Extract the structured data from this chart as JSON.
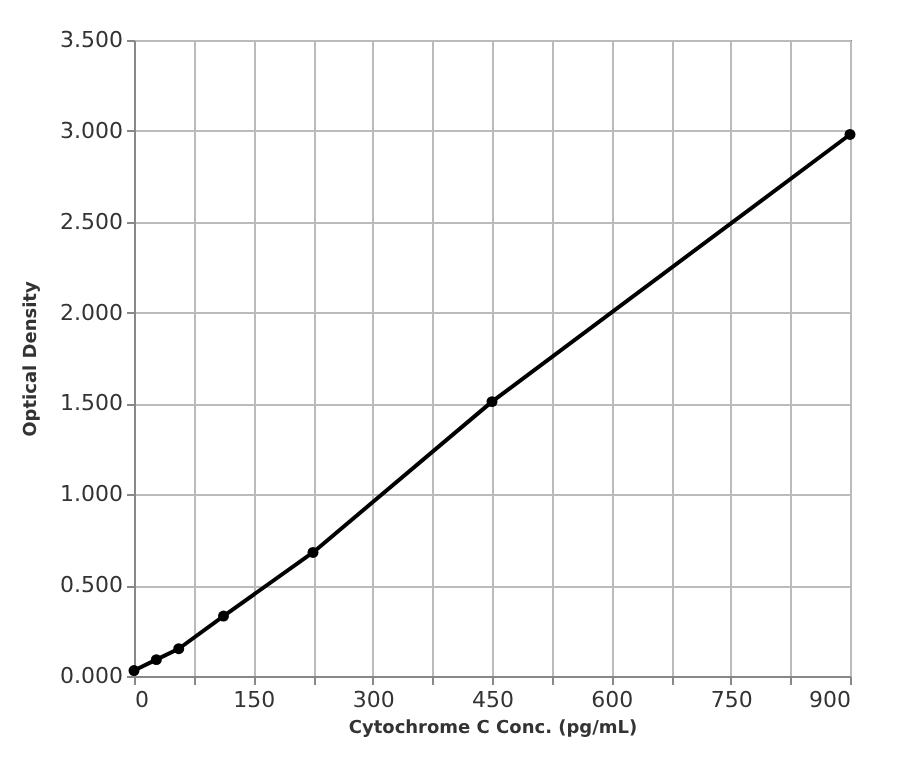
{
  "chart_data": {
    "type": "line",
    "xlabel": "Cytochrome C Conc. (pg/mL)",
    "ylabel": "Optical Density",
    "x": [
      0,
      28.1,
      56.25,
      112.5,
      225,
      450,
      900
    ],
    "series": [
      {
        "color": "#000000",
        "values": [
          0.03,
          0.09,
          0.15,
          0.33,
          0.68,
          1.51,
          2.98
        ]
      }
    ],
    "xlim": [
      0,
      900
    ],
    "ylim": [
      0,
      3.5
    ],
    "xticks": [
      0,
      {
        "value": 75,
        "label": null
      },
      150,
      {
        "value": 225,
        "label": null
      },
      300,
      {
        "value": 375,
        "label": null
      },
      450,
      {
        "value": 525,
        "label": null
      },
      600,
      {
        "value": 675,
        "label": null
      },
      750,
      {
        "value": 825,
        "label": null
      },
      900
    ],
    "yticks": [
      {
        "value": 0,
        "label": "0.000"
      },
      {
        "value": 0.5,
        "label": "0.500"
      },
      {
        "value": 1,
        "label": "1.000"
      },
      {
        "value": 1.5,
        "label": "1.500"
      },
      {
        "value": 2,
        "label": "2.000"
      },
      {
        "value": 2.5,
        "label": "2.500"
      },
      {
        "value": 3,
        "label": "3.000"
      },
      {
        "value": 3.5,
        "label": "3.500"
      }
    ],
    "grid": true,
    "marker": "circle",
    "line_style": "solid"
  }
}
